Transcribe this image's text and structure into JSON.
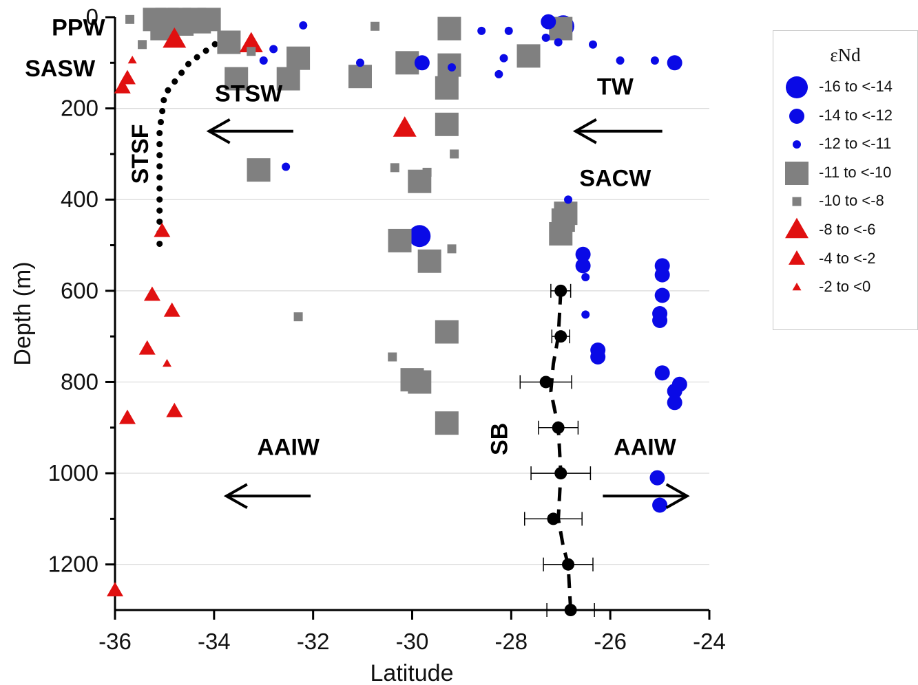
{
  "chart_data": {
    "type": "scatter",
    "xlabel": "Latitude",
    "ylabel": "Depth (m)",
    "xlim": [
      -36,
      -24
    ],
    "ylim": [
      0,
      1300
    ],
    "y_inverted": true,
    "x_ticks": [
      "-36",
      "-34",
      "-32",
      "-30",
      "-28",
      "-26",
      "-24"
    ],
    "y_ticks": [
      "0",
      "200",
      "400",
      "600",
      "800",
      "1000",
      "1200"
    ],
    "grid": "horizontal",
    "legend_title": "εNd",
    "legend_position": "right",
    "legend": [
      {
        "label": "-16 to <-14",
        "shape": "circle",
        "color": "#0a0ae6",
        "size": 5
      },
      {
        "label": "-14 to <-12",
        "shape": "circle",
        "color": "#0a0ae6",
        "size": 4
      },
      {
        "label": "-12 to <-11",
        "shape": "circle",
        "color": "#0a0ae6",
        "size": 2
      },
      {
        "label": "-11 to <-10",
        "shape": "square",
        "color": "#808080",
        "size": 5
      },
      {
        "label": "-10 to <-8",
        "shape": "square",
        "color": "#808080",
        "size": 2
      },
      {
        "label": "-8 to <-6",
        "shape": "triangle",
        "color": "#e01010",
        "size": 5
      },
      {
        "label": "-4 to <-2",
        "shape": "triangle",
        "color": "#e01010",
        "size": 4
      },
      {
        "label": "-2 to <0",
        "shape": "triangle",
        "color": "#e01010",
        "size": 2
      }
    ],
    "series": [
      {
        "name": "-16 to <-14",
        "points": [
          [
            -26.95,
            20
          ],
          [
            -29.85,
            480
          ]
        ]
      },
      {
        "name": "-14 to <-12",
        "points": [
          [
            -27.25,
            10
          ],
          [
            -24.7,
            100
          ],
          [
            -29.8,
            100
          ],
          [
            -26.55,
            520
          ],
          [
            -26.55,
            545
          ],
          [
            -24.95,
            545
          ],
          [
            -24.95,
            565
          ],
          [
            -24.95,
            610
          ],
          [
            -25.0,
            650
          ],
          [
            -25.0,
            665
          ],
          [
            -26.25,
            730
          ],
          [
            -26.25,
            745
          ],
          [
            -24.95,
            780
          ],
          [
            -24.6,
            805
          ],
          [
            -24.7,
            820
          ],
          [
            -24.7,
            845
          ],
          [
            -25.05,
            1010
          ],
          [
            -25.0,
            1070
          ]
        ]
      },
      {
        "name": "-12 to <-11",
        "points": [
          [
            -32.2,
            18
          ],
          [
            -28.6,
            30
          ],
          [
            -28.05,
            30
          ],
          [
            -27.3,
            45
          ],
          [
            -27.05,
            55
          ],
          [
            -26.35,
            60
          ],
          [
            -32.8,
            70
          ],
          [
            -33.0,
            95
          ],
          [
            -28.15,
            90
          ],
          [
            -25.8,
            95
          ],
          [
            -25.1,
            95
          ],
          [
            -31.05,
            100
          ],
          [
            -29.2,
            110
          ],
          [
            -28.25,
            125
          ],
          [
            -32.55,
            328
          ],
          [
            -26.85,
            400
          ],
          [
            -26.5,
            570
          ],
          [
            -26.5,
            652
          ]
        ]
      },
      {
        "name": "-11 to <-10",
        "points": [
          [
            -35.2,
            5
          ],
          [
            -34.95,
            5
          ],
          [
            -34.7,
            5
          ],
          [
            -34.4,
            5
          ],
          [
            -34.1,
            5
          ],
          [
            -35.05,
            25
          ],
          [
            -34.65,
            15
          ],
          [
            -34.3,
            10
          ],
          [
            -33.7,
            55
          ],
          [
            -29.25,
            25
          ],
          [
            -27.0,
            25
          ],
          [
            -32.3,
            90
          ],
          [
            -27.65,
            85
          ],
          [
            -30.1,
            100
          ],
          [
            -29.25,
            105
          ],
          [
            -33.55,
            135
          ],
          [
            -32.5,
            135
          ],
          [
            -31.05,
            130
          ],
          [
            -29.3,
            155
          ],
          [
            -29.3,
            235
          ],
          [
            -33.1,
            335
          ],
          [
            -29.85,
            360
          ],
          [
            -26.9,
            430
          ],
          [
            -26.95,
            445
          ],
          [
            -27.0,
            475
          ],
          [
            -30.25,
            490
          ],
          [
            -29.65,
            535
          ],
          [
            -29.3,
            690
          ],
          [
            -30.0,
            795
          ],
          [
            -29.85,
            800
          ],
          [
            -29.3,
            890
          ]
        ]
      },
      {
        "name": "-10 to <-8",
        "points": [
          [
            -35.7,
            5
          ],
          [
            -35.15,
            5
          ],
          [
            -34.8,
            10
          ],
          [
            -30.75,
            20
          ],
          [
            -35.45,
            60
          ],
          [
            -33.25,
            75
          ],
          [
            -29.7,
            340
          ],
          [
            -30.35,
            330
          ],
          [
            -29.15,
            300
          ],
          [
            -29.2,
            508
          ],
          [
            -32.3,
            657
          ],
          [
            -30.4,
            745
          ]
        ]
      },
      {
        "name": "-8 to <-6",
        "points": [
          [
            -34.8,
            50
          ],
          [
            -33.25,
            60
          ],
          [
            -30.15,
            245
          ]
        ]
      },
      {
        "name": "-4 to <-2",
        "points": [
          [
            -35.75,
            135
          ],
          [
            -35.85,
            155
          ],
          [
            -35.05,
            470
          ],
          [
            -35.25,
            610
          ],
          [
            -34.85,
            645
          ],
          [
            -35.35,
            728
          ],
          [
            -34.8,
            865
          ],
          [
            -35.75,
            880
          ],
          [
            -36.0,
            1258
          ]
        ]
      },
      {
        "name": "-2 to <0",
        "points": [
          [
            -35.65,
            95
          ],
          [
            -34.95,
            760
          ]
        ]
      }
    ],
    "sb_points": [
      {
        "x": -27.0,
        "y": 600,
        "xerr": 0.2
      },
      {
        "x": -27.0,
        "y": 700,
        "xerr": 0.18
      },
      {
        "x": -27.3,
        "y": 800,
        "xerr": 0.52
      },
      {
        "x": -27.05,
        "y": 900,
        "xerr": 0.4
      },
      {
        "x": -27.0,
        "y": 1000,
        "xerr": 0.6
      },
      {
        "x": -27.15,
        "y": 1100,
        "xerr": 0.58
      },
      {
        "x": -26.85,
        "y": 1200,
        "xerr": 0.5
      },
      {
        "x": -26.8,
        "y": 1300,
        "xerr": 0.48
      }
    ],
    "stsf_line": [
      [
        -33.8,
        45
      ],
      [
        -34.5,
        100
      ],
      [
        -35.0,
        170
      ],
      [
        -35.1,
        250
      ],
      [
        -35.1,
        350
      ],
      [
        -35.1,
        450
      ],
      [
        -35.1,
        505
      ]
    ],
    "sb_line": [
      [
        -27.0,
        600
      ],
      [
        -27.05,
        700
      ],
      [
        -27.15,
        760
      ],
      [
        -27.2,
        820
      ],
      [
        -27.05,
        900
      ],
      [
        -27.0,
        1000
      ],
      [
        -27.05,
        1100
      ],
      [
        -26.95,
        1160
      ],
      [
        -26.85,
        1200
      ],
      [
        -26.8,
        1300
      ]
    ],
    "annotations": [
      {
        "text": "PPW",
        "x": -36.2,
        "y": 40,
        "anchor": "end"
      },
      {
        "text": "SASW",
        "x": -36.4,
        "y": 130,
        "anchor": "end"
      },
      {
        "text": "STSW",
        "x": -33.3,
        "y": 185,
        "anchor": "middle"
      },
      {
        "text": "TW",
        "x": -25.9,
        "y": 170,
        "anchor": "middle"
      },
      {
        "text": "SACW",
        "x": -25.9,
        "y": 370,
        "anchor": "middle"
      },
      {
        "text": "AAIW",
        "x": -32.5,
        "y": 960,
        "anchor": "middle"
      },
      {
        "text": "AAIW",
        "x": -25.3,
        "y": 960,
        "anchor": "middle"
      },
      {
        "text": "STSF",
        "x": -35.5,
        "y": 300,
        "anchor": "middle",
        "vertical": true
      },
      {
        "text": "SB",
        "x": -28.25,
        "y": 925,
        "anchor": "middle",
        "vertical": true
      }
    ],
    "arrows": [
      {
        "x1": -32.4,
        "x2": -34.1,
        "y": 250
      },
      {
        "x1": -24.95,
        "x2": -26.7,
        "y": 250
      },
      {
        "x1": -32.05,
        "x2": -33.75,
        "y": 1050
      },
      {
        "x1": -26.15,
        "x2": -24.45,
        "y": 1050
      }
    ]
  }
}
